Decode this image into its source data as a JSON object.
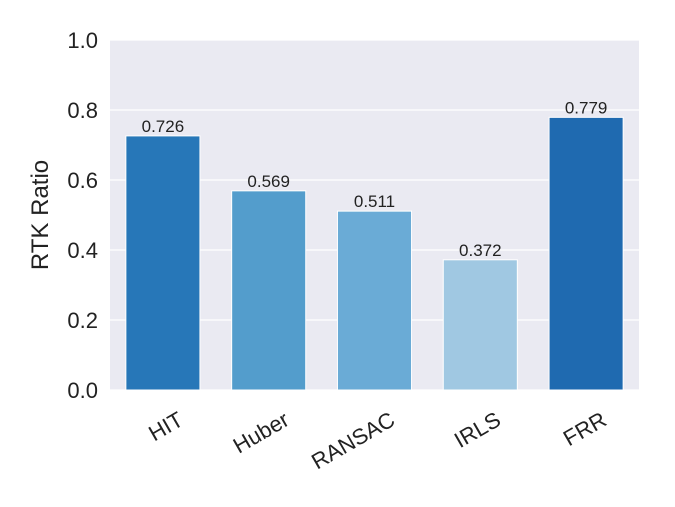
{
  "chart_data": {
    "type": "bar",
    "categories": [
      "HIT",
      "Huber",
      "RANSAC",
      "IRLS",
      "FRR"
    ],
    "values": [
      0.726,
      0.569,
      0.511,
      0.372,
      0.779
    ],
    "value_labels": [
      "0.726",
      "0.569",
      "0.511",
      "0.372",
      "0.779"
    ],
    "bar_colors": [
      "#2777b8",
      "#539dcc",
      "#6aabd6",
      "#a0c8e2",
      "#1f6ab0"
    ],
    "ylabel": "RTK Ratio",
    "xlabel": "",
    "ylim": [
      0,
      1.0
    ],
    "yticks": [
      "0.0",
      "0.2",
      "0.4",
      "0.6",
      "0.8",
      "1.0"
    ],
    "grid": true,
    "background": "#eaeaf2",
    "grid_color": "#ffffff"
  }
}
